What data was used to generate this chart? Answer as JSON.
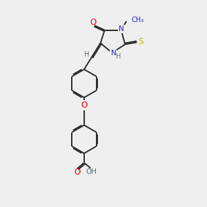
{
  "bg_color": "#efefef",
  "bond_color": "#2a2a2a",
  "atom_colors": {
    "O": "#e00000",
    "N": "#2020cc",
    "S": "#b8b800",
    "H": "#5a6a7a"
  },
  "lw": 1.4,
  "fs": 7.5
}
